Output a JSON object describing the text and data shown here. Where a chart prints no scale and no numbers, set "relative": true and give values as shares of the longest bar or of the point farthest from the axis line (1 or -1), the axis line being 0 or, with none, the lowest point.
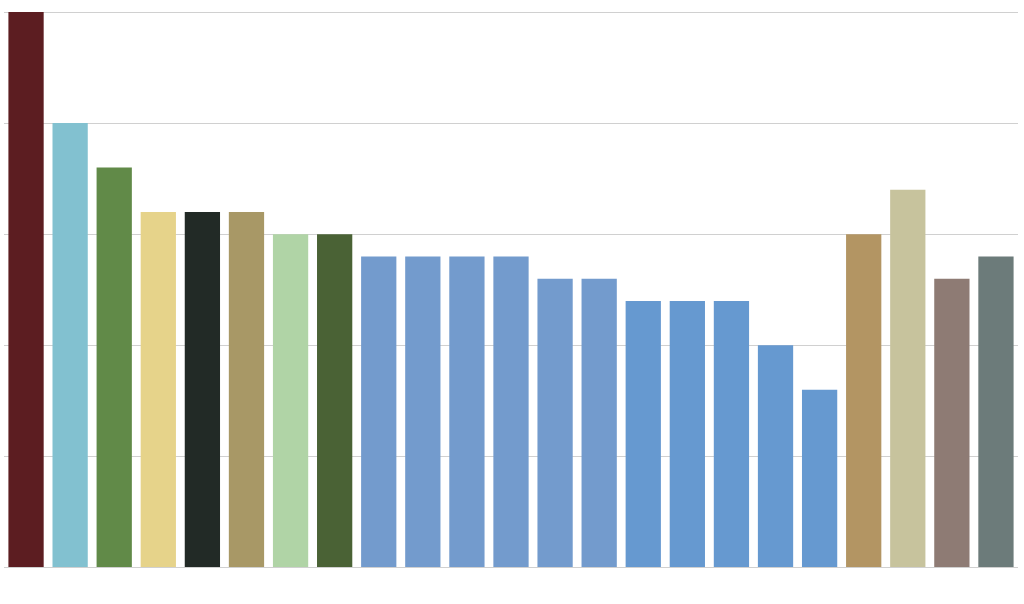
{
  "chart_data": {
    "type": "bar",
    "relative": true,
    "grid": "y",
    "legend": false,
    "categories": [
      null,
      null,
      null,
      null,
      null,
      null,
      null,
      null,
      null,
      null,
      null,
      null,
      null,
      null,
      null,
      null,
      null,
      null,
      null,
      null,
      null,
      null,
      null
    ],
    "values": [
      1.0,
      0.8,
      0.72,
      0.64,
      0.64,
      0.64,
      0.6,
      0.6,
      0.56,
      0.56,
      0.56,
      0.56,
      0.52,
      0.52,
      0.48,
      0.48,
      0.48,
      0.4,
      0.32,
      0.6,
      0.68,
      0.52,
      0.56
    ],
    "colors": [
      "#5c1d21",
      "#82c1d0",
      "#618a48",
      "#e6d38a",
      "#222a26",
      "#a89866",
      "#b0d4a6",
      "#4a6235",
      "#739bcd",
      "#739bcd",
      "#739bcd",
      "#739bcd",
      "#739bcd",
      "#739bcd",
      "#6699d0",
      "#6699d0",
      "#6699d0",
      "#6699d0",
      "#6699d0",
      "#b39563",
      "#c7c39d",
      "#8e7b74",
      "#6c7b7a"
    ]
  }
}
